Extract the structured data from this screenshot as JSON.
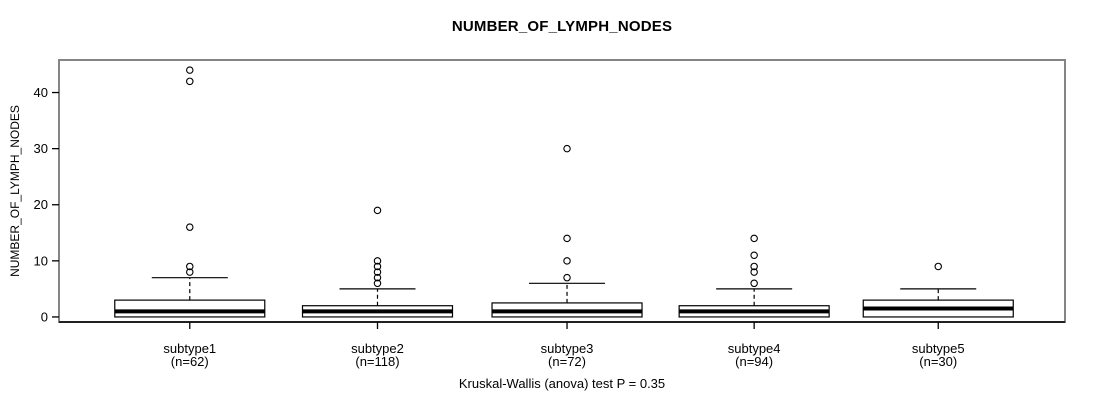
{
  "chart_data": {
    "type": "boxplot",
    "title": "NUMBER_OF_LYMPH_NODES",
    "ylabel": "NUMBER_OF_LYMPH_NODES",
    "caption": "Kruskal-Wallis (anova) test P = 0.35",
    "yticks": [
      0,
      10,
      20,
      30,
      40
    ],
    "ylim": [
      -0.9,
      45.8
    ],
    "grid": false,
    "legend": "none",
    "groups": [
      {
        "label": "subtype1",
        "sublabel": "(n=62)",
        "n": 62,
        "q1": 0,
        "median": 1,
        "q3": 3,
        "whisker_low": 0,
        "whisker_high": 7,
        "outliers": [
          8,
          9,
          16,
          42,
          44
        ]
      },
      {
        "label": "subtype2",
        "sublabel": "(n=118)",
        "n": 118,
        "q1": 0,
        "median": 1,
        "q3": 2,
        "whisker_low": 0,
        "whisker_high": 5,
        "outliers": [
          6,
          7,
          8,
          9,
          10,
          19
        ]
      },
      {
        "label": "subtype3",
        "sublabel": "(n=72)",
        "n": 72,
        "q1": 0,
        "median": 1,
        "q3": 2.5,
        "whisker_low": 0,
        "whisker_high": 6,
        "outliers": [
          7,
          10,
          14,
          30
        ]
      },
      {
        "label": "subtype4",
        "sublabel": "(n=94)",
        "n": 94,
        "q1": 0,
        "median": 1,
        "q3": 2,
        "whisker_low": 0,
        "whisker_high": 5,
        "outliers": [
          6,
          8,
          9,
          11,
          14
        ]
      },
      {
        "label": "subtype5",
        "sublabel": "(n=30)",
        "n": 30,
        "q1": 0,
        "median": 1.5,
        "q3": 3,
        "whisker_low": 0,
        "whisker_high": 5,
        "outliers": [
          9
        ]
      }
    ],
    "colors": {
      "frame": "#858585",
      "axis": "#000000",
      "box_stroke": "#000000",
      "box_fill": "#ffffff",
      "median": "#000000",
      "text": "#000000",
      "background": "#ffffff"
    }
  }
}
